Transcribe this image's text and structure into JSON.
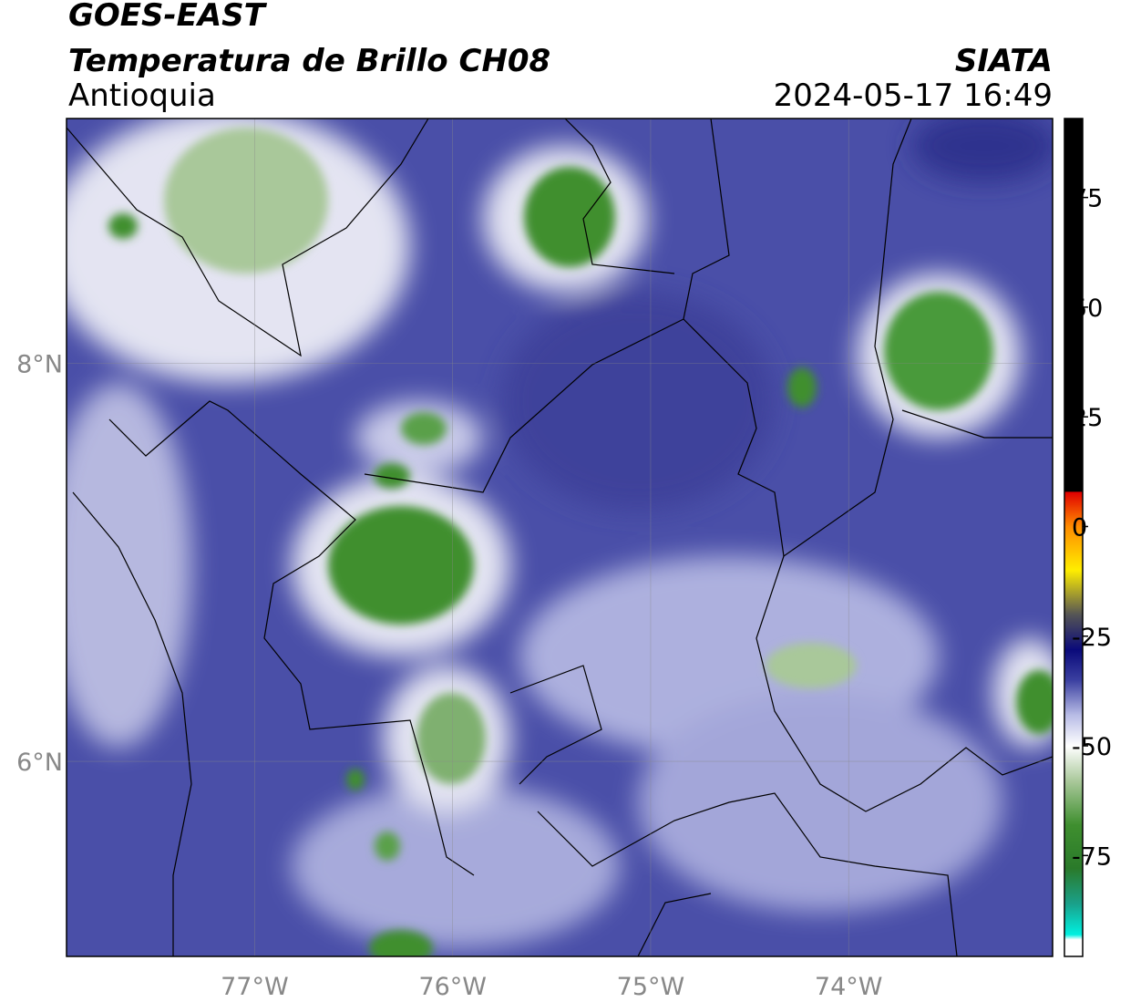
{
  "header": {
    "title": "GOES-EAST",
    "subtitle": "Temperatura de Brillo CH08",
    "region": "Antioquia",
    "source": "SIATA",
    "timestamp": "2024-05-17 16:49"
  },
  "map": {
    "xlim": [
      -77.95,
      -72.97
    ],
    "ylim": [
      5.02,
      9.23
    ],
    "xticks": [
      {
        "value": -77,
        "label": "77°W"
      },
      {
        "value": -76,
        "label": "76°W"
      },
      {
        "value": -75,
        "label": "75°W"
      },
      {
        "value": -74,
        "label": "74°W"
      }
    ],
    "yticks": [
      {
        "value": 6,
        "label": "6°N"
      },
      {
        "value": 8,
        "label": "8°N"
      }
    ],
    "grid": true
  },
  "colorbar": {
    "ylim": [
      -98,
      93
    ],
    "yticks": [
      -75,
      -50,
      -25,
      0,
      25,
      50,
      75
    ]
  }
}
